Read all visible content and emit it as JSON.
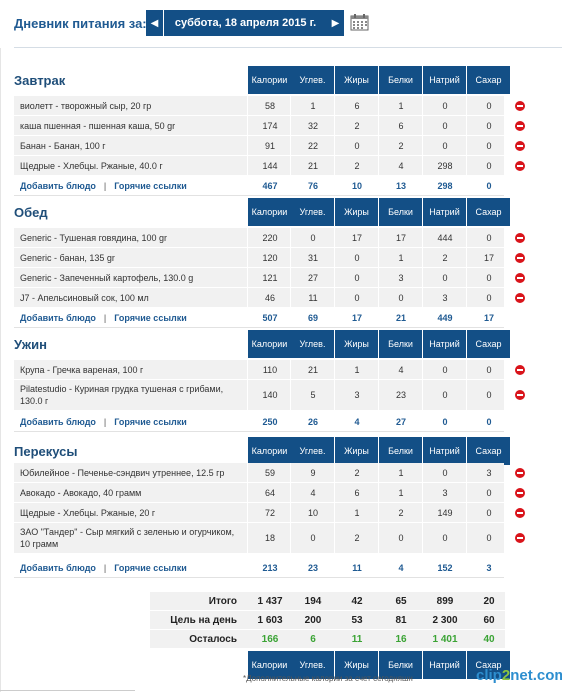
{
  "header": {
    "label": "Дневник питания за:",
    "date": "суббота, 18 апреля 2015 г.",
    "prev_arrow": "◀",
    "next_arrow": "▶"
  },
  "columns": [
    "Калории",
    "Углев.",
    "Жиры",
    "Белки",
    "Натрий",
    "Сахар"
  ],
  "links": {
    "add": "Добавить блюдо",
    "separator": "|",
    "hot": "Горячие ссылки"
  },
  "meals": [
    {
      "title": "Завтрак",
      "items": [
        {
          "name": "виолетт - творожный сыр, 20 гр",
          "values": [
            "58",
            "1",
            "6",
            "1",
            "0",
            "0"
          ]
        },
        {
          "name": "каша пшенная - пшенная каша, 50 gr",
          "values": [
            "174",
            "32",
            "2",
            "6",
            "0",
            "0"
          ]
        },
        {
          "name": "Банан - Банан, 100 г",
          "values": [
            "91",
            "22",
            "0",
            "2",
            "0",
            "0"
          ]
        },
        {
          "name": "Щедрые - Хлебцы. Ржаные, 40.0 г",
          "values": [
            "144",
            "21",
            "2",
            "4",
            "298",
            "0"
          ]
        }
      ],
      "totals": [
        "467",
        "76",
        "10",
        "13",
        "298",
        "0"
      ]
    },
    {
      "title": "Обед",
      "items": [
        {
          "name": "Generic - Тушеная говядина, 100 gr",
          "values": [
            "220",
            "0",
            "17",
            "17",
            "444",
            "0"
          ]
        },
        {
          "name": "Generic - банан, 135 gr",
          "values": [
            "120",
            "31",
            "0",
            "1",
            "2",
            "17"
          ]
        },
        {
          "name": "Generic - Запеченный картофель, 130.0 g",
          "values": [
            "121",
            "27",
            "0",
            "3",
            "0",
            "0"
          ]
        },
        {
          "name": "J7 - Апельсиновый сок, 100 мл",
          "values": [
            "46",
            "11",
            "0",
            "0",
            "3",
            "0"
          ]
        }
      ],
      "totals": [
        "507",
        "69",
        "17",
        "21",
        "449",
        "17"
      ]
    },
    {
      "title": "Ужин",
      "items": [
        {
          "name": "Крупа - Гречка вареная, 100 г",
          "values": [
            "110",
            "21",
            "1",
            "4",
            "0",
            "0"
          ]
        },
        {
          "name": "Pilatestudio - Куриная грудка тушеная с грибами, 130.0 г",
          "values": [
            "140",
            "5",
            "3",
            "23",
            "0",
            "0"
          ]
        }
      ],
      "totals": [
        "250",
        "26",
        "4",
        "27",
        "0",
        "0"
      ]
    },
    {
      "title": "Перекусы",
      "items": [
        {
          "name": "Юбилейное - Печенье-сэндвич утреннее, 12.5 гр",
          "values": [
            "59",
            "9",
            "2",
            "1",
            "0",
            "3"
          ]
        },
        {
          "name": "Авокадо - Авокадо, 40 грамм",
          "values": [
            "64",
            "4",
            "6",
            "1",
            "3",
            "0"
          ]
        },
        {
          "name": "Щедрые - Хлебцы. Ржаные, 20 г",
          "values": [
            "72",
            "10",
            "1",
            "2",
            "149",
            "0"
          ]
        },
        {
          "name": "ЗАО \"Тандер\" - Сыр мягкий с зеленью и огурчиком, 10 грамм",
          "values": [
            "18",
            "0",
            "2",
            "0",
            "0",
            "0"
          ]
        }
      ],
      "totals": [
        "213",
        "23",
        "11",
        "4",
        "152",
        "3"
      ]
    }
  ],
  "summary": [
    {
      "label": "Итого",
      "values": [
        "1 437",
        "194",
        "42",
        "65",
        "899",
        "20"
      ]
    },
    {
      "label": "Цель на день",
      "values": [
        "1 603",
        "200",
        "53",
        "81",
        "2 300",
        "60"
      ]
    },
    {
      "label": "Осталось",
      "values": [
        "166",
        "6",
        "11",
        "16",
        "1 401",
        "40"
      ]
    }
  ],
  "footnote": "*Дополнительные калории за счет сегодняшн",
  "watermark": {
    "part1": "clip",
    "part2": "2",
    "part3": "net.com"
  },
  "colors": {
    "header_bg": "#134f86",
    "link": "#1f5a92",
    "remaining_green": "#3aa334",
    "delete_red": "#d9141b"
  }
}
